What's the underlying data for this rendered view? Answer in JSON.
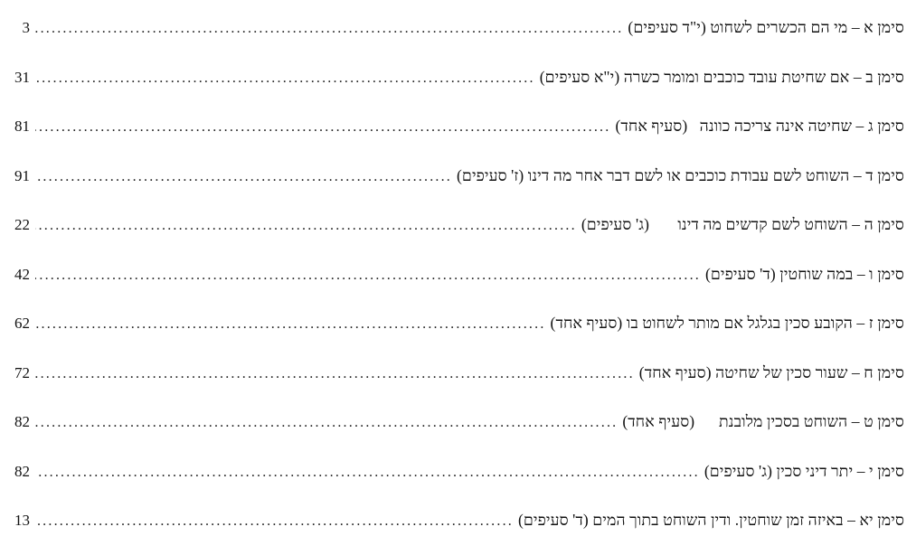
{
  "page": {
    "background": "#ffffff",
    "text_color": "#111111",
    "dot_color": "#1c1c1c"
  },
  "toc": {
    "entries": [
      {
        "title": "סימן א – מי הם הכשרים לשחוט (י\"ד סעיפים)",
        "page": "3"
      },
      {
        "title": "סימן ב – אם שחיטת עובד כוכבים ומומר כשרה (י\"א סעיפים)",
        "page": "31"
      },
      {
        "title": "סימן ג – שחיטה אינה צריכה כוונה   (סעיף אחד)",
        "page": "81"
      },
      {
        "title": "סימן ד – השוחט לשם עבודת כוכבים או לשם דבר אחר מה דינו (ז' סעיפים)",
        "page": "91"
      },
      {
        "title": "סימן ה – השוחט לשם קדשים מה דינו       (ג' סעיפים)",
        "page": "22"
      },
      {
        "title": "סימן ו – במה שוחטין (ד' סעיפים)",
        "page": "42"
      },
      {
        "title": "סימן ז – הקובע סכין בגלגל אם מותר לשחוט בו (סעיף אחד)",
        "page": "62"
      },
      {
        "title": "סימן ח – שעור סכין של שחיטה (סעיף אחד)",
        "page": "72"
      },
      {
        "title": "סימן ט – השוחט בסכין מלובנת      (סעיף אחד)",
        "page": "82"
      },
      {
        "title": "סימן י – יתר דיני סכין (ג' סעיפים)",
        "page": "82"
      },
      {
        "title": "סימן יא – באיזה זמן שוחטין. ודין השוחט בתוך המים (ד' סעיפים)",
        "page": "13"
      }
    ]
  }
}
